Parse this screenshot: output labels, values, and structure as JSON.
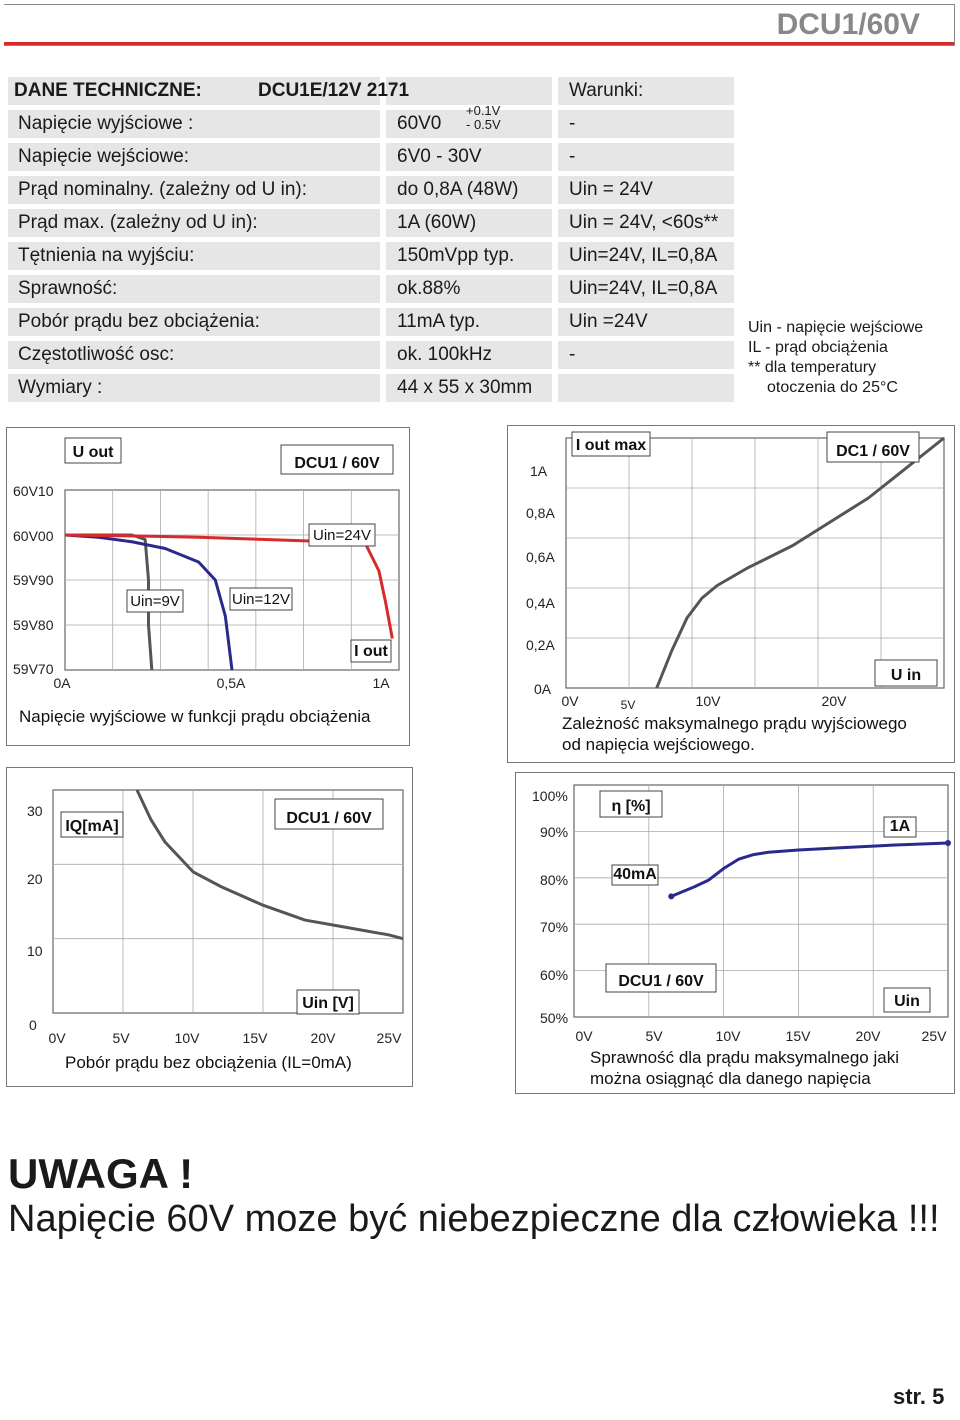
{
  "header": {
    "title": "DCU1/60V"
  },
  "specs": {
    "heading": "DANE TECHNICZNE:",
    "model": "DCU1E/12V  2171",
    "conditions_heading": "Warunki:",
    "rows": [
      {
        "label": "Napięcie wyjściowe :",
        "value": "60V0",
        "condition": "-"
      },
      {
        "label": "Napięcie wejściowe:",
        "value": "6V0 - 30V",
        "condition": "-"
      },
      {
        "label": "Prąd nominalny. (zależny od U in):",
        "value": "do 0,8A  (48W)",
        "condition": "Uin = 24V"
      },
      {
        "label": "Prąd max. (zależny od U in):",
        "value": "1A   (60W)",
        "condition": "Uin = 24V, <60s**"
      },
      {
        "label": "Tętnienia na wyjściu:",
        "value": "150mVpp typ.",
        "condition": "Uin=24V, IL=0,8A"
      },
      {
        "label": "Sprawność:",
        "value": "ok.88%",
        "condition": "Uin=24V, IL=0,8A"
      },
      {
        "label": "Pobór prądu bez obciążenia:",
        "value": "11mA  typ.",
        "condition": "Uin =24V"
      },
      {
        "label": "Częstotliwość osc:",
        "value": "ok. 100kHz",
        "condition": "-"
      },
      {
        "label": "Wymiary :",
        "value": "44 x 55 x 30mm",
        "condition": ""
      }
    ],
    "tolerance_plus": "+0.1V",
    "tolerance_minus": "- 0.5V",
    "notes": [
      "Uin - napięcie wejściowe",
      "IL - prąd obciążenia",
      "** dla temperatury",
      "otoczenia do 25°C"
    ]
  },
  "chart_data": [
    {
      "type": "line",
      "title": "DCU1 / 60V",
      "caption": "Napięcie wyjściowe w funkcji prądu obciążenia",
      "ylabel": "U out",
      "xlabel": "I out",
      "x_ticks": [
        "0A",
        "0,5A",
        "1A"
      ],
      "y_ticks": [
        "60V10",
        "60V00",
        "59V90",
        "59V80",
        "59V70"
      ],
      "xlim": [
        0,
        1.0
      ],
      "ylim": [
        59.7,
        60.1
      ],
      "series": [
        {
          "name": "Uin=9V",
          "color": "#555555",
          "x": [
            0,
            0.2,
            0.24,
            0.25,
            0.25,
            0.26
          ],
          "y": [
            60.0,
            60.0,
            59.99,
            59.9,
            59.8,
            59.7
          ]
        },
        {
          "name": "Uin=12V",
          "color": "#2a2a8c",
          "x": [
            0,
            0.1,
            0.2,
            0.3,
            0.4,
            0.45,
            0.48,
            0.5
          ],
          "y": [
            60.0,
            59.995,
            59.985,
            59.97,
            59.94,
            59.9,
            59.82,
            59.7
          ]
        },
        {
          "name": "Uin=24V",
          "color": "#d82a2a",
          "x": [
            0,
            0.2,
            0.4,
            0.6,
            0.8,
            0.9,
            0.94,
            0.96,
            0.98
          ],
          "y": [
            60.0,
            59.998,
            59.995,
            59.99,
            59.985,
            59.98,
            59.92,
            59.85,
            59.77
          ]
        }
      ]
    },
    {
      "type": "line",
      "title": "DC1 / 60V",
      "caption": [
        "Zależność maksymalnego prądu wyjściowego",
        "od napięcia wejściowego."
      ],
      "ylabel": "I out max",
      "xlabel": "U in",
      "x_ticks": [
        "0V",
        "5V",
        "10V",
        "20V"
      ],
      "y_ticks": [
        "1A",
        "0,8A",
        "0,6A",
        "0,4A",
        "0,2A",
        "0A"
      ],
      "xlim": [
        0,
        25
      ],
      "ylim": [
        0,
        1.0
      ],
      "series": [
        {
          "name": "",
          "color": "#555555",
          "x": [
            6,
            7,
            8,
            9,
            10,
            12,
            15,
            20,
            25
          ],
          "y": [
            0.0,
            0.15,
            0.28,
            0.36,
            0.41,
            0.48,
            0.57,
            0.76,
            1.0
          ]
        }
      ]
    },
    {
      "type": "line",
      "title": "DCU1 / 60V",
      "caption": "Pobór prądu bez obciążenia  (IL=0mA)",
      "ylabel": "IQ[mA]",
      "xlabel": "Uin [V]",
      "x_ticks": [
        "0V",
        "5V",
        "10V",
        "15V",
        "20V",
        "25V"
      ],
      "y_ticks": [
        "30",
        "20",
        "10",
        "0"
      ],
      "xlim": [
        0,
        25
      ],
      "ylim": [
        0,
        30
      ],
      "series": [
        {
          "name": "",
          "color": "#555555",
          "x": [
            6,
            6.5,
            7,
            8,
            9,
            10,
            12,
            15,
            18,
            21,
            24,
            25
          ],
          "y": [
            30,
            28,
            26,
            23,
            21,
            19,
            17,
            14.5,
            12.5,
            11.5,
            10.5,
            10
          ]
        }
      ]
    },
    {
      "type": "line",
      "title": "DCU1 / 60V",
      "caption": [
        "Sprawność dla prądu maksymalnego jaki",
        "można  osiągnąć dla danego napięcia"
      ],
      "ylabel": "η [%]",
      "xlabel": "Uin",
      "x_ticks": [
        "0V",
        "5V",
        "10V",
        "15V",
        "20V",
        "25V"
      ],
      "y_ticks": [
        "100%",
        "90%",
        "80%",
        "70%",
        "60%",
        "50%"
      ],
      "xlim": [
        0,
        25
      ],
      "ylim": [
        50,
        100
      ],
      "series": [
        {
          "name": "",
          "color": "#2a2a8c",
          "x": [
            6.5,
            8,
            9,
            10,
            11,
            12,
            13,
            15,
            18,
            21,
            25
          ],
          "y": [
            76,
            78,
            79.5,
            82,
            84,
            85,
            85.5,
            86,
            86.5,
            87,
            87.5
          ]
        }
      ],
      "annotations": [
        "40mA",
        "1A"
      ]
    }
  ],
  "warning": {
    "title": "UWAGA !",
    "text": "Napięcie 60V moze być niebezpieczne dla człowieka !!!"
  },
  "page_number": "str. 5"
}
